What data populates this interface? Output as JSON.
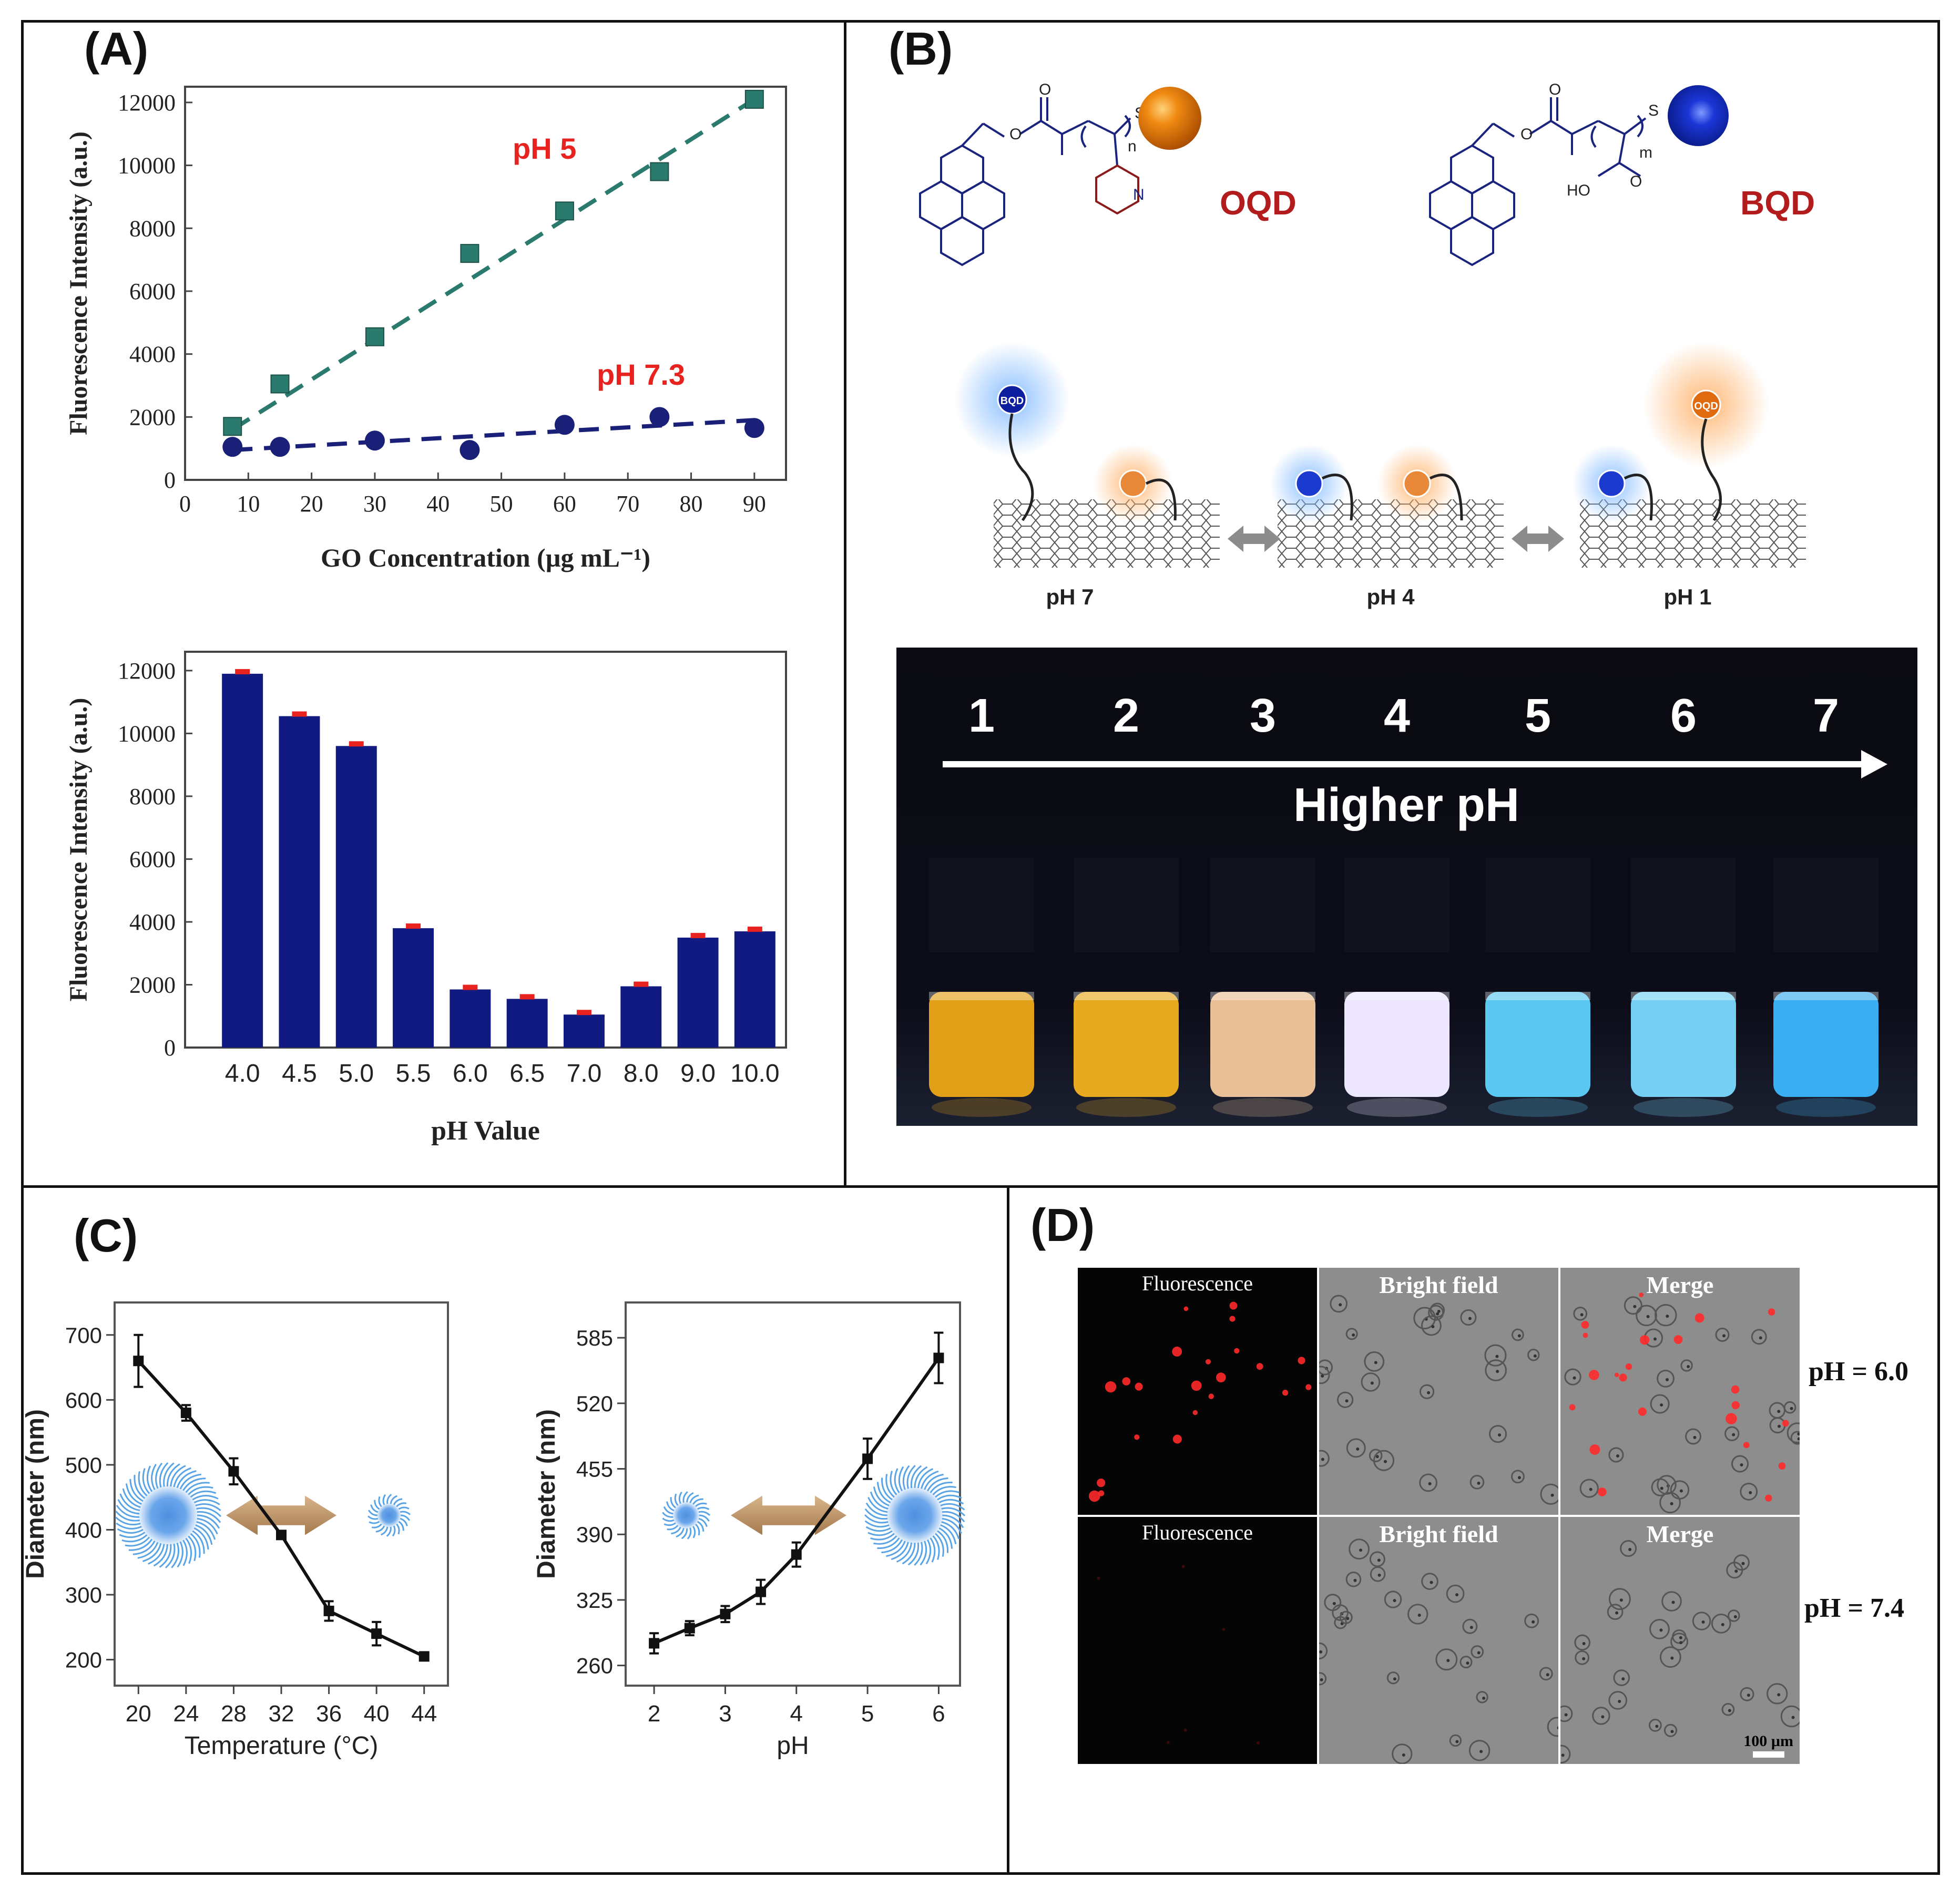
{
  "panels": {
    "A": "(A)",
    "B": "(B)",
    "C": "(C)",
    "D": "(D)"
  },
  "colors": {
    "teal": "#2a7a6e",
    "navy": "#1a1f78",
    "red_label": "#e8231f",
    "dark_red": "#b21c1c",
    "bar": "#101a80"
  },
  "chart_data": [
    {
      "id": "A1",
      "type": "scatter",
      "xlabel": "GO Concentration (µg mL⁻¹)",
      "ylabel": "Fluorescence Intensity (a.u.)",
      "xlim": [
        0,
        95
      ],
      "ylim": [
        0,
        12500
      ],
      "xticks": [
        0,
        10,
        20,
        30,
        40,
        50,
        60,
        70,
        80,
        90
      ],
      "yticks": [
        0,
        2000,
        4000,
        6000,
        8000,
        10000,
        12000
      ],
      "series": [
        {
          "name": "pH 5",
          "marker": "square",
          "color": "#2a7a6e",
          "x": [
            7.5,
            15,
            30,
            45,
            60,
            75,
            90
          ],
          "y": [
            1700,
            3050,
            4550,
            7200,
            8550,
            9800,
            12100
          ],
          "fit": [
            [
              7.5,
              1600
            ],
            [
              90,
              12100
            ]
          ]
        },
        {
          "name": "pH 7.3",
          "marker": "circle",
          "color": "#1a1f78",
          "x": [
            7.5,
            15,
            30,
            45,
            60,
            75,
            90
          ],
          "y": [
            1050,
            1050,
            1250,
            950,
            1750,
            2000,
            1650
          ],
          "fit": [
            [
              7.5,
              950
            ],
            [
              90,
              1900
            ]
          ]
        }
      ]
    },
    {
      "id": "A2",
      "type": "bar",
      "xlabel": "pH Value",
      "ylabel": "Fluorescence Intensity (a.u.)",
      "ylim": [
        0,
        12600
      ],
      "yticks": [
        0,
        2000,
        4000,
        6000,
        8000,
        10000,
        12000
      ],
      "categories": [
        "4.0",
        "4.5",
        "5.0",
        "5.5",
        "6.0",
        "6.5",
        "7.0",
        "8.0",
        "9.0",
        "10.0"
      ],
      "values": [
        11900,
        10550,
        9600,
        3800,
        1850,
        1550,
        1050,
        1950,
        3500,
        3700
      ]
    },
    {
      "id": "C1",
      "type": "line",
      "xlabel": "Temperature (°C)",
      "ylabel": "Diameter (nm)",
      "xlim": [
        18,
        46
      ],
      "ylim": [
        160,
        750
      ],
      "xticks": [
        20,
        24,
        28,
        32,
        36,
        40,
        44
      ],
      "yticks": [
        200,
        300,
        400,
        500,
        600,
        700
      ],
      "x": [
        20,
        24,
        28,
        32,
        36,
        40,
        44
      ],
      "y": [
        660,
        580,
        490,
        392,
        275,
        240,
        205
      ],
      "err": [
        40,
        12,
        20,
        5,
        15,
        18,
        5
      ]
    },
    {
      "id": "C2",
      "type": "line",
      "xlabel": "pH",
      "ylabel": "Diameter (nm)",
      "xlim": [
        1.6,
        6.3
      ],
      "ylim": [
        240,
        620
      ],
      "xticks": [
        2,
        3,
        4,
        5,
        6
      ],
      "yticks": [
        260,
        325,
        390,
        455,
        520,
        585
      ],
      "x": [
        2,
        2.5,
        3,
        3.5,
        4,
        5,
        6
      ],
      "y": [
        282,
        297,
        311,
        333,
        370,
        465,
        565
      ],
      "err": [
        10,
        7,
        8,
        12,
        12,
        20,
        25
      ]
    }
  ],
  "panelA": {
    "label_ph5": "pH 5",
    "label_ph73": "pH 7.3"
  },
  "panelB": {
    "oqd": "OQD",
    "bqd": "BQD",
    "bqd_tag": "BQD",
    "oqd_tag": "OQD",
    "chem_n": "n",
    "chem_m": "m",
    "chem_s": "S",
    "chem_o": "O",
    "chem_n_atom": "N",
    "chem_ho": "HO",
    "states": [
      "pH 7",
      "pH 4",
      "pH 1"
    ],
    "vial_numbers": [
      "1",
      "2",
      "3",
      "4",
      "5",
      "6",
      "7"
    ],
    "arrow_label": "Higher pH",
    "vial_colors": [
      "#e2a018",
      "#e6a920",
      "#e8bf96",
      "#ece6ff",
      "#5ac8f0",
      "#74cff2",
      "#3aaef0"
    ]
  },
  "panelD": {
    "col_labels": [
      "Fluorescence",
      "Bright field",
      "Merge"
    ],
    "row_labels": [
      "pH = 6.0",
      "pH = 7.4"
    ],
    "scale": "100 µm"
  }
}
